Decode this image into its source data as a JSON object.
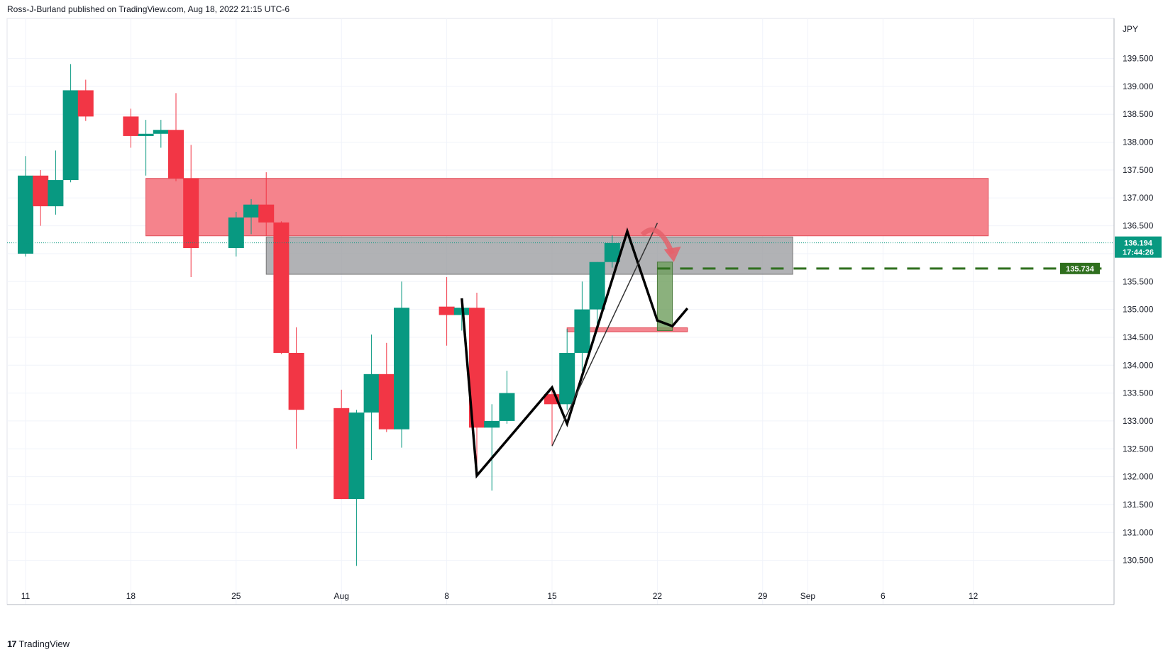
{
  "header": {
    "publisher_line": "Ross-J-Burland published on TradingView.com, Aug 18, 2022 21:15 UTC-6"
  },
  "footer": {
    "logo_text": "TradingView"
  },
  "colors": {
    "up": "#089981",
    "down": "#f23645",
    "resistance_zone": "#f47c86",
    "gray_zone": "#9e9fa3",
    "grid": "#f0f3fa",
    "current_price_tag": "#089981",
    "target_tag": "#2f6f1e",
    "pattern_line": "#000000",
    "curved_arrow": "#e4626b"
  },
  "chart_data": {
    "type": "candlestick",
    "currency_label": "JPY",
    "y_axis": {
      "min": 130.5,
      "max": 139.5,
      "ticks": [
        "139.500",
        "139.000",
        "138.500",
        "138.000",
        "137.500",
        "137.000",
        "136.500",
        "136.000",
        "135.500",
        "135.000",
        "134.500",
        "134.000",
        "133.500",
        "133.000",
        "132.500",
        "132.000",
        "131.500",
        "131.000",
        "130.500"
      ]
    },
    "x_axis": {
      "ticks": [
        {
          "label": "11",
          "day": "2022-07-11"
        },
        {
          "label": "18",
          "day": "2022-07-18"
        },
        {
          "label": "25",
          "day": "2022-07-25"
        },
        {
          "label": "Aug",
          "day": "2022-08-01"
        },
        {
          "label": "8",
          "day": "2022-08-08"
        },
        {
          "label": "15",
          "day": "2022-08-15"
        },
        {
          "label": "22",
          "day": "2022-08-22"
        },
        {
          "label": "29",
          "day": "2022-08-29"
        },
        {
          "label": "Sep",
          "day": "2022-09-01"
        },
        {
          "label": "6",
          "day": "2022-09-06"
        },
        {
          "label": "12",
          "day": "2022-09-12"
        }
      ]
    },
    "candles": [
      {
        "date": "2022-07-08",
        "o": 136.1,
        "h": 136.3,
        "l": 136.0,
        "c": 136.0
      },
      {
        "date": "2022-07-11",
        "o": 136.0,
        "h": 137.75,
        "l": 135.95,
        "c": 137.4
      },
      {
        "date": "2022-07-12",
        "o": 137.4,
        "h": 137.5,
        "l": 136.5,
        "c": 136.85
      },
      {
        "date": "2022-07-13",
        "o": 136.85,
        "h": 137.85,
        "l": 136.7,
        "c": 137.32
      },
      {
        "date": "2022-07-14",
        "o": 137.32,
        "h": 139.4,
        "l": 137.28,
        "c": 138.93
      },
      {
        "date": "2022-07-15",
        "o": 138.93,
        "h": 139.12,
        "l": 138.38,
        "c": 138.46
      },
      {
        "date": "2022-07-18",
        "o": 138.46,
        "h": 138.6,
        "l": 137.9,
        "c": 138.11
      },
      {
        "date": "2022-07-19",
        "o": 138.11,
        "h": 138.4,
        "l": 137.4,
        "c": 138.15
      },
      {
        "date": "2022-07-20",
        "o": 138.15,
        "h": 138.4,
        "l": 137.9,
        "c": 138.22
      },
      {
        "date": "2022-07-21",
        "o": 138.22,
        "h": 138.88,
        "l": 137.3,
        "c": 137.35
      },
      {
        "date": "2022-07-22",
        "o": 137.35,
        "h": 137.95,
        "l": 135.58,
        "c": 136.1
      },
      {
        "date": "2022-07-25",
        "o": 136.1,
        "h": 136.75,
        "l": 135.95,
        "c": 136.65
      },
      {
        "date": "2022-07-26",
        "o": 136.65,
        "h": 136.98,
        "l": 136.35,
        "c": 136.88
      },
      {
        "date": "2022-07-27",
        "o": 136.88,
        "h": 137.46,
        "l": 136.32,
        "c": 136.56
      },
      {
        "date": "2022-07-28",
        "o": 136.56,
        "h": 136.58,
        "l": 134.2,
        "c": 134.22
      },
      {
        "date": "2022-07-29",
        "o": 134.22,
        "h": 134.68,
        "l": 132.5,
        "c": 133.2
      },
      {
        "date": "2022-08-01",
        "o": 133.23,
        "h": 133.56,
        "l": 131.6,
        "c": 131.6
      },
      {
        "date": "2022-08-02",
        "o": 131.6,
        "h": 133.2,
        "l": 130.4,
        "c": 133.15
      },
      {
        "date": "2022-08-03",
        "o": 133.15,
        "h": 134.55,
        "l": 132.3,
        "c": 133.84
      },
      {
        "date": "2022-08-04",
        "o": 133.84,
        "h": 134.4,
        "l": 132.8,
        "c": 132.85
      },
      {
        "date": "2022-08-05",
        "o": 132.85,
        "h": 135.5,
        "l": 132.52,
        "c": 135.03
      },
      {
        "date": "2022-08-08",
        "o": 135.05,
        "h": 135.58,
        "l": 134.35,
        "c": 134.9
      },
      {
        "date": "2022-08-09",
        "o": 134.9,
        "h": 135.15,
        "l": 134.62,
        "c": 135.03
      },
      {
        "date": "2022-08-10",
        "o": 135.03,
        "h": 135.3,
        "l": 132.0,
        "c": 132.88
      },
      {
        "date": "2022-08-11",
        "o": 132.88,
        "h": 133.3,
        "l": 131.75,
        "c": 133.0
      },
      {
        "date": "2022-08-12",
        "o": 133.0,
        "h": 133.9,
        "l": 132.95,
        "c": 133.5
      },
      {
        "date": "2022-08-15",
        "o": 133.48,
        "h": 133.6,
        "l": 132.55,
        "c": 133.3
      },
      {
        "date": "2022-08-16",
        "o": 133.3,
        "h": 134.65,
        "l": 133.2,
        "c": 134.22
      },
      {
        "date": "2022-08-17",
        "o": 134.22,
        "h": 135.5,
        "l": 133.9,
        "c": 135.0
      },
      {
        "date": "2022-08-18",
        "o": 135.0,
        "h": 135.85,
        "l": 134.68,
        "c": 135.85
      },
      {
        "date": "2022-08-19",
        "o": 135.85,
        "h": 136.33,
        "l": 135.75,
        "c": 136.19
      }
    ],
    "zones": [
      {
        "name": "resistance-zone",
        "from": "2022-07-19",
        "to": "2022-09-13",
        "top": 137.35,
        "bottom": 136.32
      },
      {
        "name": "gray-zone",
        "from": "2022-07-27",
        "to": "2022-08-31",
        "top": 136.3,
        "bottom": 135.63
      },
      {
        "name": "support-line-zone",
        "from": "2022-08-16",
        "to": "2022-08-24",
        "top": 134.67,
        "bottom": 134.6
      },
      {
        "name": "short-target-box",
        "from": "2022-08-22",
        "to": "2022-08-23",
        "top": 135.85,
        "bottom": 134.62
      }
    ],
    "current_price": {
      "value": "136.194",
      "countdown": "17:44:26"
    },
    "target_line": {
      "value": "135.734",
      "from": "2022-08-22"
    },
    "pattern_lines": [
      {
        "name": "w-pattern-bold",
        "points": [
          [
            "2022-08-09",
            135.2
          ],
          [
            "2022-08-10",
            132.02
          ],
          [
            "2022-08-15",
            133.6
          ],
          [
            "2022-08-16",
            132.95
          ],
          [
            "2022-08-20",
            136.4
          ],
          [
            "2022-08-22",
            134.8
          ],
          [
            "2022-08-23",
            134.7
          ],
          [
            "2022-08-24",
            135.02
          ]
        ]
      },
      {
        "name": "trend-line-thin",
        "points": [
          [
            "2022-08-15",
            132.55
          ],
          [
            "2022-08-22",
            136.55
          ]
        ]
      }
    ]
  }
}
